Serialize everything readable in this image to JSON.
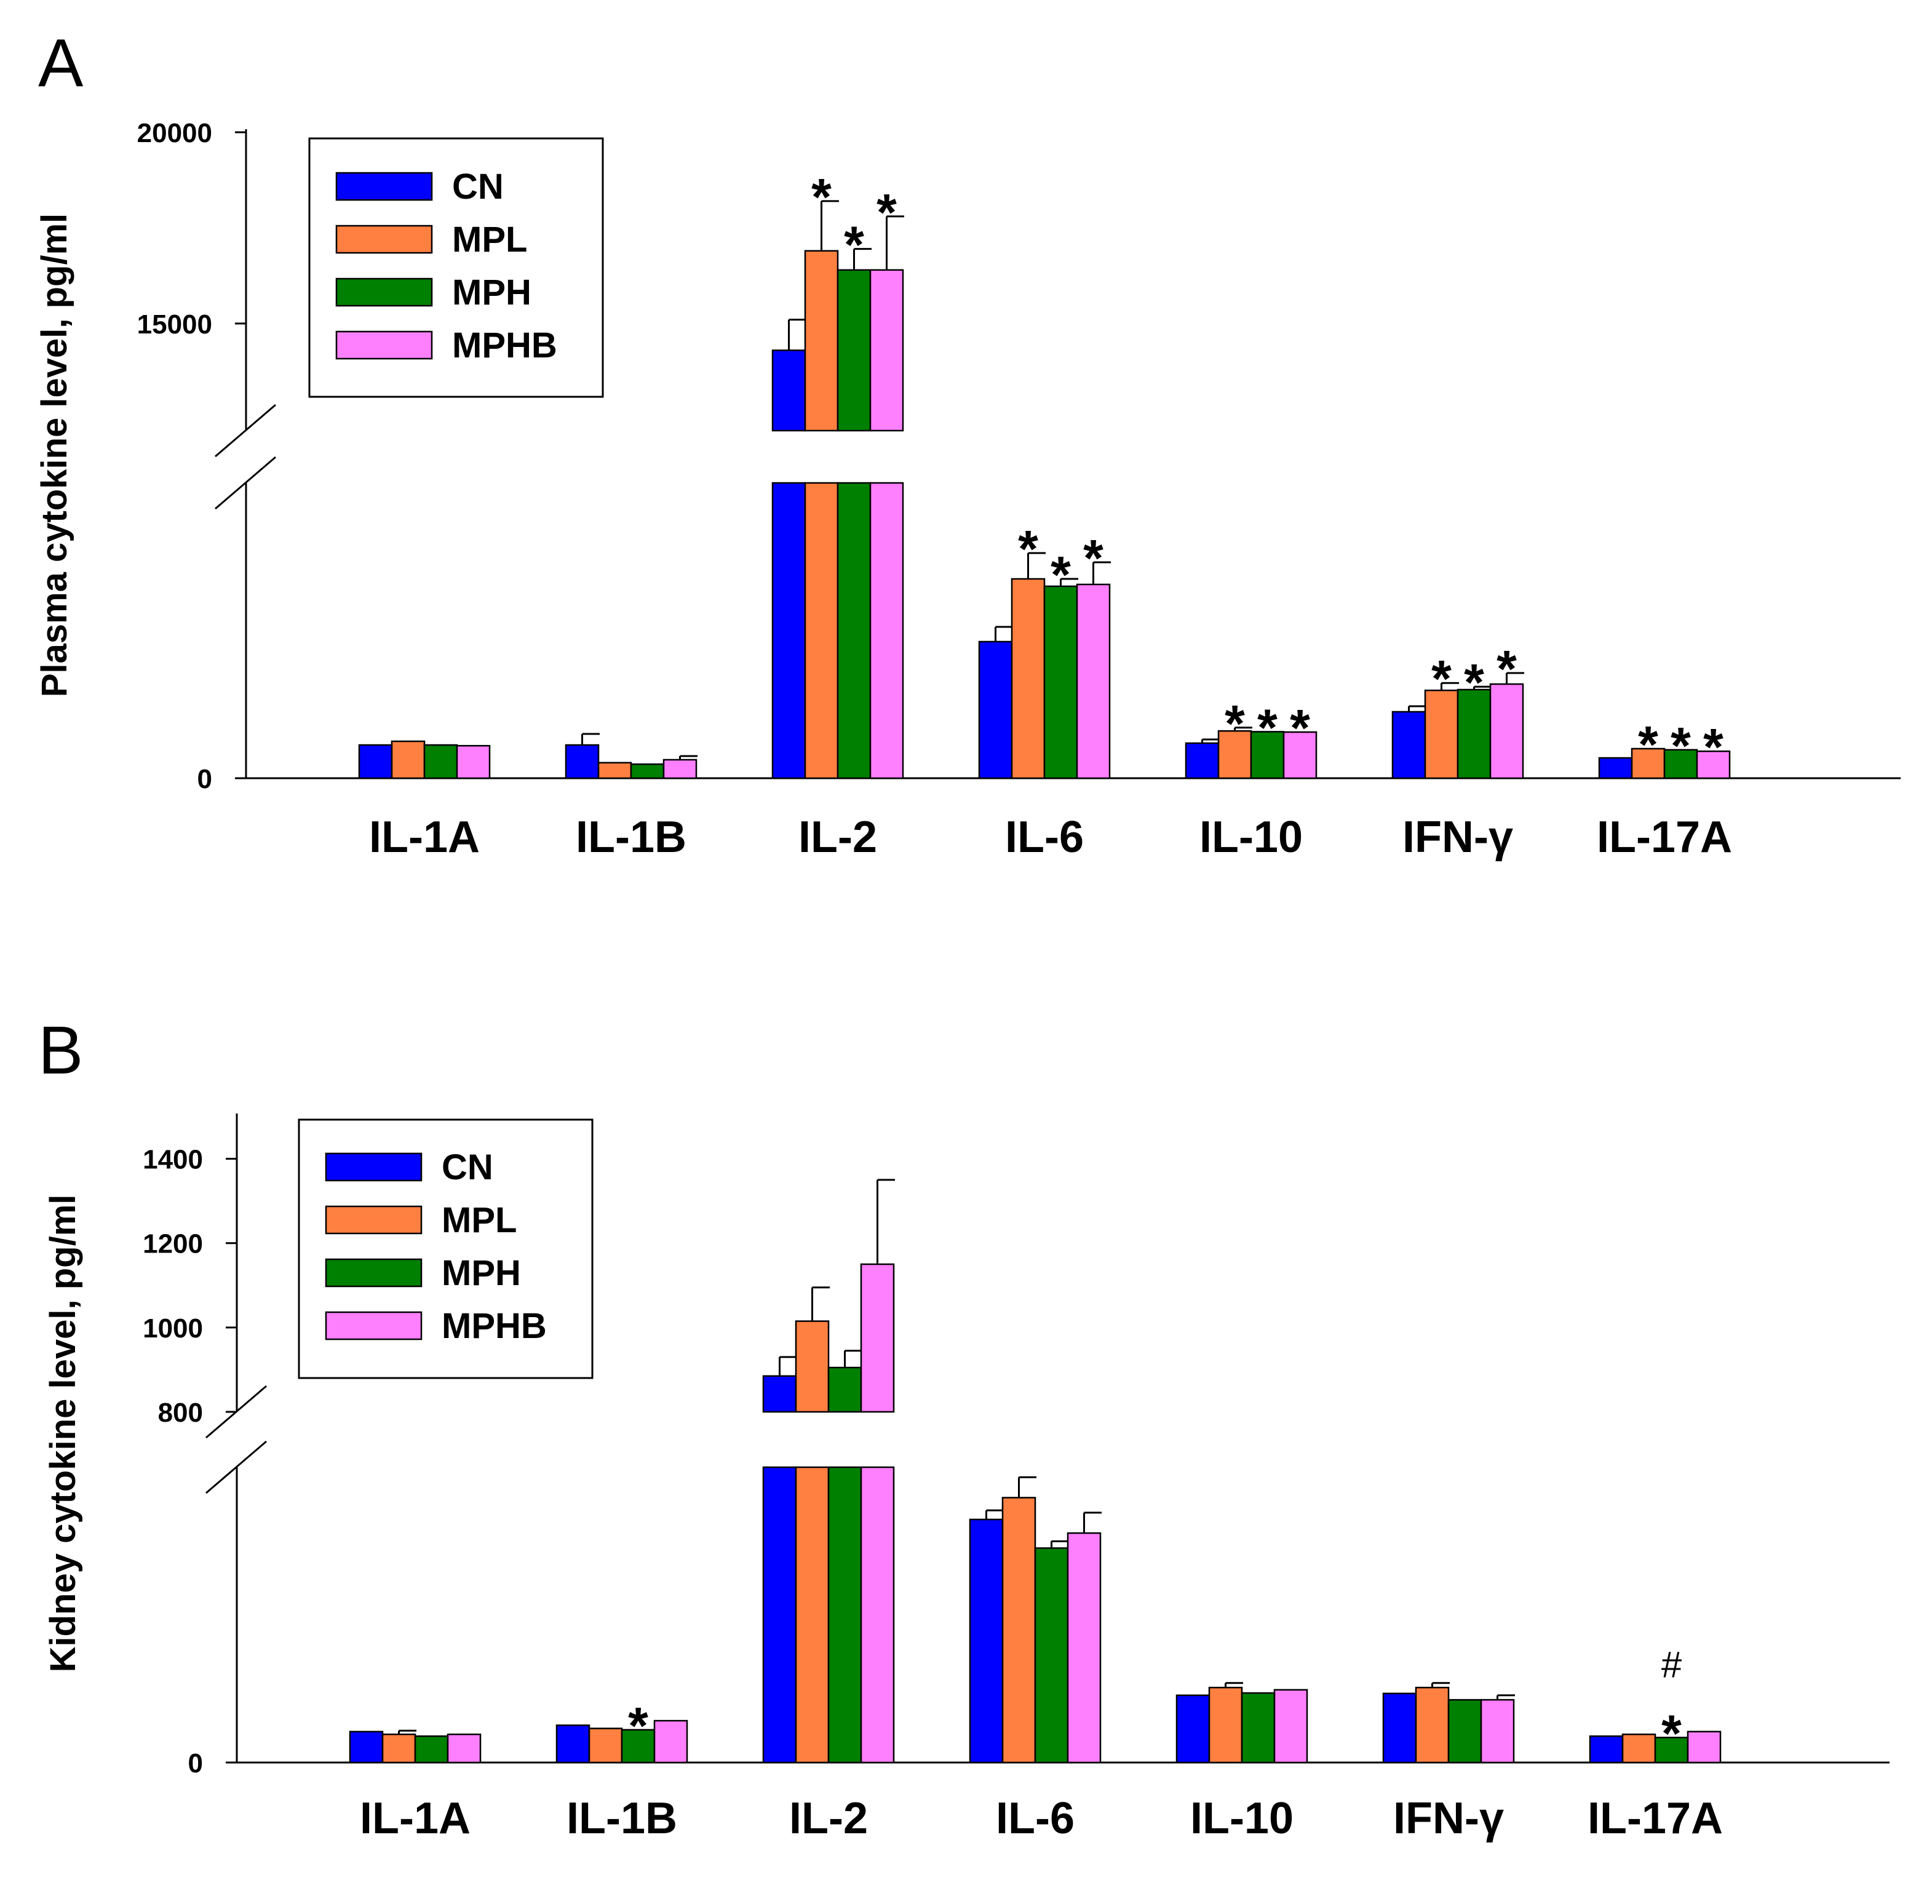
{
  "colors": {
    "CN": "#0000ff",
    "MPL": "#ff8040",
    "MPH": "#008000",
    "MPHB": "#ff80ff"
  },
  "chart_data": [
    {
      "panel": "A",
      "type": "bar",
      "ylabel": "Plasma cytokine level, pg/ml",
      "axis_break": true,
      "upper_ticks": [
        "15000",
        "20000"
      ],
      "lower_ticks": [
        "0"
      ],
      "categories": [
        "IL-1A",
        "IL-1B",
        "IL-2",
        "IL-6",
        "IL-10",
        "IFN-γ",
        "IL-17A"
      ],
      "legend": [
        "CN",
        "MPL",
        "MPH",
        "MPHB"
      ],
      "legend_position": "top-left",
      "series": [
        {
          "name": "CN",
          "values": [
            900,
            900,
            14300,
            3700,
            950,
            1800,
            550
          ],
          "errors": [
            0,
            300,
            800,
            400,
            100,
            150,
            0
          ]
        },
        {
          "name": "MPL",
          "values": [
            1000,
            420,
            16900,
            5400,
            1280,
            2380,
            800
          ],
          "errors": [
            0,
            0,
            1300,
            700,
            90,
            200,
            0
          ]
        },
        {
          "name": "MPH",
          "values": [
            900,
            380,
            16400,
            5200,
            1260,
            2400,
            770
          ],
          "errors": [
            0,
            0,
            550,
            200,
            0,
            80,
            0
          ]
        },
        {
          "name": "MPHB",
          "values": [
            880,
            500,
            16400,
            5250,
            1250,
            2550,
            730
          ],
          "errors": [
            0,
            100,
            1400,
            600,
            0,
            300,
            0
          ]
        }
      ],
      "annotations": [
        {
          "category": "IL-2",
          "series": "MPL",
          "text": "*"
        },
        {
          "category": "IL-2",
          "series": "MPH",
          "text": "*"
        },
        {
          "category": "IL-2",
          "series": "MPHB",
          "text": "*"
        },
        {
          "category": "IL-6",
          "series": "MPL",
          "text": "*"
        },
        {
          "category": "IL-6",
          "series": "MPH",
          "text": "*"
        },
        {
          "category": "IL-6",
          "series": "MPHB",
          "text": "*"
        },
        {
          "category": "IL-10",
          "series": "MPL",
          "text": "*"
        },
        {
          "category": "IL-10",
          "series": "MPH",
          "text": "*"
        },
        {
          "category": "IL-10",
          "series": "MPHB",
          "text": "*"
        },
        {
          "category": "IFN-γ",
          "series": "MPL",
          "text": "*"
        },
        {
          "category": "IFN-γ",
          "series": "MPH",
          "text": "*"
        },
        {
          "category": "IFN-γ",
          "series": "MPHB",
          "text": "*"
        },
        {
          "category": "IL-17A",
          "series": "MPL",
          "text": "*"
        },
        {
          "category": "IL-17A",
          "series": "MPH",
          "text": "*"
        },
        {
          "category": "IL-17A",
          "series": "MPHB",
          "text": "*"
        }
      ]
    },
    {
      "panel": "B",
      "type": "bar",
      "ylabel": "Kidney cytokine level, pg/ml",
      "axis_break": true,
      "upper_ticks": [
        "800",
        "1000",
        "1200",
        "1400"
      ],
      "lower_ticks": [
        "0"
      ],
      "categories": [
        "IL-1A",
        "IL-1B",
        "IL-2",
        "IL-6",
        "IL-10",
        "IFN-γ",
        "IL-17A"
      ],
      "legend": [
        "CN",
        "MPL",
        "MPH",
        "MPHB"
      ],
      "legend_position": "top-left",
      "series": [
        {
          "name": "CN",
          "values": [
            68,
            82,
            885,
            535,
            148,
            152,
            58
          ],
          "errors": [
            0,
            0,
            45,
            20,
            0,
            0,
            0
          ]
        },
        {
          "name": "MPL",
          "values": [
            62,
            75,
            1015,
            583,
            165,
            165,
            62
          ],
          "errors": [
            8,
            0,
            80,
            45,
            10,
            10,
            0
          ]
        },
        {
          "name": "MPH",
          "values": [
            58,
            72,
            905,
            472,
            153,
            138,
            55
          ],
          "errors": [
            0,
            0,
            40,
            15,
            0,
            0,
            0
          ]
        },
        {
          "name": "MPHB",
          "values": [
            62,
            92,
            1150,
            505,
            160,
            138,
            68
          ],
          "errors": [
            0,
            0,
            200,
            45,
            0,
            10,
            0
          ]
        }
      ],
      "annotations": [
        {
          "category": "IL-1B",
          "series": "MPH",
          "text": "*"
        },
        {
          "category": "IL-17A",
          "series": "MPH",
          "text": "*"
        },
        {
          "category": "IL-17A",
          "series": "MPH",
          "text": "#",
          "row": 2
        }
      ]
    }
  ]
}
